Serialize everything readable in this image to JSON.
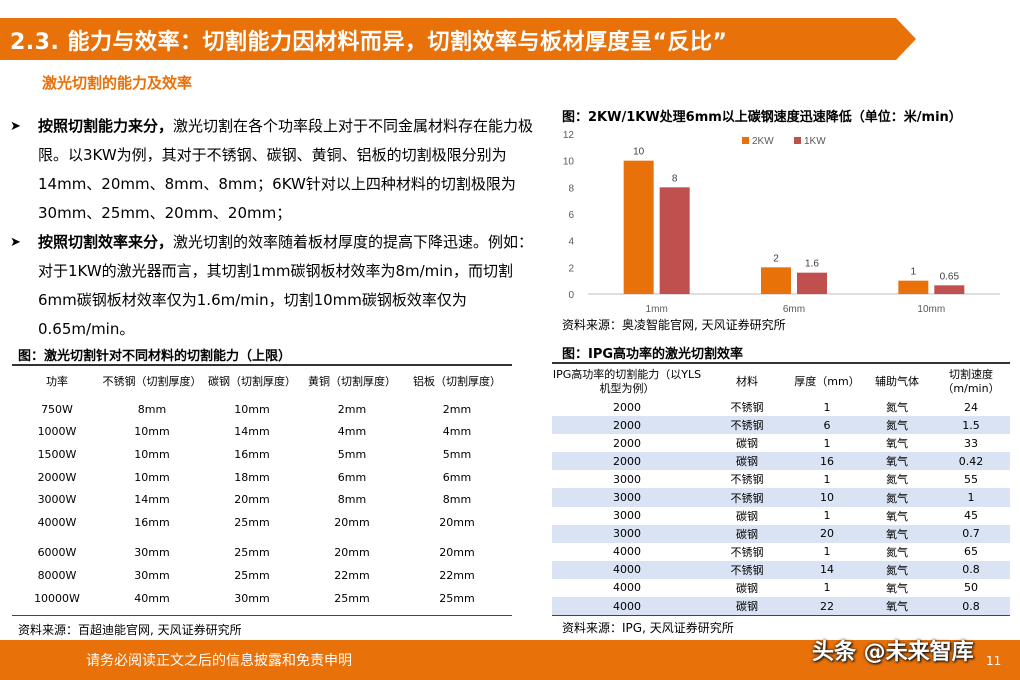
{
  "banner": {
    "title": "2.3. 能力与效率：切割能力因材料而异，切割效率与板材厚度呈“反比”"
  },
  "subtitle": "激光切割的能力及效率",
  "bullets": [
    {
      "bold": "按照切割能力来分，",
      "text": "激光切割在各个功率段上对于不同金属材料存在能力极限。以3KW为例，其对于不锈钢、碳钢、黄铜、铝板的切割极限分别为14mm、20mm、8mm、8mm；6KW针对以上四种材料的切割极限为30mm、25mm、20mm、20mm；"
    },
    {
      "bold": "按照切割效率来分，",
      "text": "激光切割的效率随着板材厚度的提高下降迅速。例如：对于1KW的激光器而言，其切割1mm碳钢板材效率为8m/min，而切割6mm碳钢板材效率仅为1.6m/min，切割10mm碳钢板效率仅为0.65m/min。"
    }
  ],
  "table1": {
    "title": "图：激光切割针对不同材料的切割能力（上限）",
    "headers": [
      "功率",
      "不锈钢（切割厚度）",
      "碳钢（切割厚度）",
      "黄铜（切割厚度）",
      "铝板（切割厚度）"
    ],
    "rows": [
      [
        "750W",
        "8mm",
        "10mm",
        "2mm",
        "2mm"
      ],
      [
        "1000W",
        "10mm",
        "14mm",
        "4mm",
        "4mm"
      ],
      [
        "1500W",
        "10mm",
        "16mm",
        "5mm",
        "5mm"
      ],
      [
        "2000W",
        "10mm",
        "18mm",
        "6mm",
        "6mm"
      ],
      [
        "3000W",
        "14mm",
        "20mm",
        "8mm",
        "8mm"
      ],
      [
        "4000W",
        "16mm",
        "25mm",
        "20mm",
        "20mm"
      ],
      [
        "6000W",
        "30mm",
        "25mm",
        "20mm",
        "20mm"
      ],
      [
        "8000W",
        "30mm",
        "25mm",
        "22mm",
        "22mm"
      ],
      [
        "10000W",
        "40mm",
        "30mm",
        "25mm",
        "25mm"
      ]
    ],
    "source": "资料来源：百超迪能官网, 天风证券研究所"
  },
  "chart_data": {
    "type": "bar",
    "title": "图：2KW/1KW处理6mm以上碳钢速度迅速降低（单位：米/min）",
    "categories": [
      "1mm",
      "6mm",
      "10mm"
    ],
    "series": [
      {
        "name": "2KW",
        "values": [
          10,
          2,
          1
        ],
        "labels": [
          "10",
          "2",
          "1"
        ],
        "color": "#E8710A"
      },
      {
        "name": "1KW",
        "values": [
          8,
          1.6,
          0.65
        ],
        "labels": [
          "8",
          "1.6",
          "0.65"
        ],
        "color": "#C0504D"
      }
    ],
    "ylim": [
      0,
      12
    ],
    "yticks": [
      "0",
      "2",
      "4",
      "6",
      "8",
      "10",
      "12"
    ],
    "legend": "top",
    "grid": false,
    "source": "资料来源：奥凌智能官网, 天风证券研究所"
  },
  "table2": {
    "title": "图：IPG高功率的激光切割效率",
    "headers": [
      "IPG高功率的切割能力（以YLS机型为例）",
      "材料",
      "厚度（mm）",
      "辅助气体",
      "切割速度（m/min）"
    ],
    "rows": [
      [
        "2000",
        "不锈钢",
        "1",
        "氮气",
        "24"
      ],
      [
        "2000",
        "不锈钢",
        "6",
        "氮气",
        "1.5"
      ],
      [
        "2000",
        "碳钢",
        "1",
        "氧气",
        "33"
      ],
      [
        "2000",
        "碳钢",
        "16",
        "氧气",
        "0.42"
      ],
      [
        "3000",
        "不锈钢",
        "1",
        "氮气",
        "55"
      ],
      [
        "3000",
        "不锈钢",
        "10",
        "氮气",
        "1"
      ],
      [
        "3000",
        "碳钢",
        "1",
        "氧气",
        "45"
      ],
      [
        "3000",
        "碳钢",
        "20",
        "氧气",
        "0.7"
      ],
      [
        "4000",
        "不锈钢",
        "1",
        "氮气",
        "65"
      ],
      [
        "4000",
        "不锈钢",
        "14",
        "氮气",
        "0.8"
      ],
      [
        "4000",
        "碳钢",
        "1",
        "氧气",
        "50"
      ],
      [
        "4000",
        "碳钢",
        "22",
        "氧气",
        "0.8"
      ]
    ],
    "source": "资料来源：IPG, 天风证券研究所"
  },
  "footer": {
    "text": "请务必阅读正文之后的信息披露和免责申明",
    "page": "11"
  },
  "watermark": "头条 @未来智库",
  "colors": {
    "accent": "#E8710A",
    "series2": "#C0504D",
    "row_shade": "#D9E3F3"
  }
}
